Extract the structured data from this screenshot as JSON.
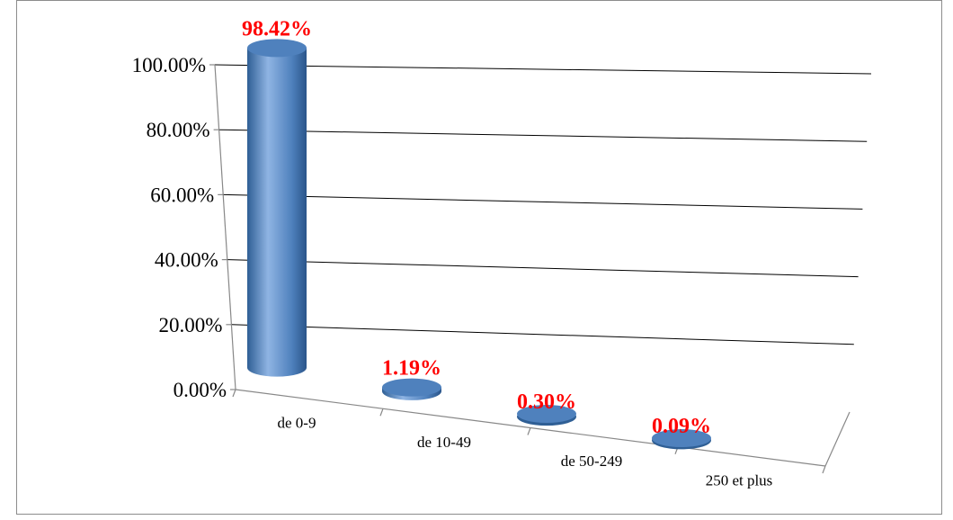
{
  "chart_data": {
    "type": "bar",
    "style": "3d-cylinder",
    "categories": [
      "de 0-9",
      "de 10-49",
      "de 50-249",
      "250 et plus"
    ],
    "values": [
      98.42,
      1.19,
      0.3,
      0.09
    ],
    "data_labels": [
      "98.42%",
      "1.19%",
      "0.30%",
      "0.09%"
    ],
    "y_ticks": [
      "0.00%",
      "20.00%",
      "40.00%",
      "60.00%",
      "80.00%",
      "100.00%"
    ],
    "ylim": [
      0,
      100
    ],
    "grid": true,
    "title": "",
    "xlabel": "",
    "ylabel": ""
  },
  "colors": {
    "bar": "#4f81bd",
    "bar_dark": "#2f5f95",
    "bar_light": "#8fb4e3",
    "data_label": "#ff0000",
    "gridline": "#000000"
  }
}
